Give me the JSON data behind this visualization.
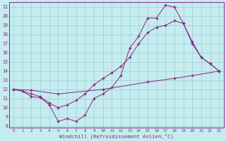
{
  "xlabel": "Windchill (Refroidissement éolien,°C)",
  "background_color": "#c5ecee",
  "line_color": "#882288",
  "grid_color": "#9dcdd4",
  "xlim": [
    -0.5,
    23.5
  ],
  "ylim": [
    7.8,
    21.5
  ],
  "xticks": [
    0,
    1,
    2,
    3,
    4,
    5,
    6,
    7,
    8,
    9,
    10,
    11,
    12,
    13,
    14,
    15,
    16,
    17,
    18,
    19,
    20,
    21,
    22,
    23
  ],
  "yticks": [
    8,
    9,
    10,
    11,
    12,
    13,
    14,
    15,
    16,
    17,
    18,
    19,
    20,
    21
  ],
  "line1_x": [
    0,
    1,
    2,
    3,
    4,
    5,
    6,
    7,
    8,
    9,
    10,
    11,
    12,
    13,
    14,
    15,
    16,
    17,
    18,
    19,
    20,
    21,
    22,
    23
  ],
  "line1_y": [
    12.0,
    11.8,
    11.2,
    11.1,
    10.3,
    8.5,
    8.8,
    8.5,
    9.2,
    11.0,
    11.5,
    12.2,
    13.5,
    16.5,
    17.8,
    19.8,
    19.8,
    21.2,
    21.0,
    19.2,
    17.0,
    15.5,
    14.8,
    14.0
  ],
  "line2_x": [
    0,
    1,
    2,
    3,
    4,
    5,
    6,
    7,
    8,
    9,
    10,
    11,
    12,
    13,
    14,
    15,
    16,
    17,
    18,
    19,
    20,
    21,
    22,
    23
  ],
  "line2_y": [
    12.0,
    11.8,
    11.5,
    11.2,
    10.5,
    10.0,
    10.3,
    10.8,
    11.5,
    12.5,
    13.2,
    13.8,
    14.5,
    15.5,
    17.0,
    18.2,
    18.8,
    19.0,
    19.5,
    19.2,
    17.2,
    15.5,
    14.8,
    14.0
  ],
  "line3_x": [
    0,
    2,
    5,
    10,
    15,
    18,
    20,
    23
  ],
  "line3_y": [
    12.0,
    11.9,
    11.5,
    12.0,
    12.8,
    13.2,
    13.5,
    14.0
  ]
}
